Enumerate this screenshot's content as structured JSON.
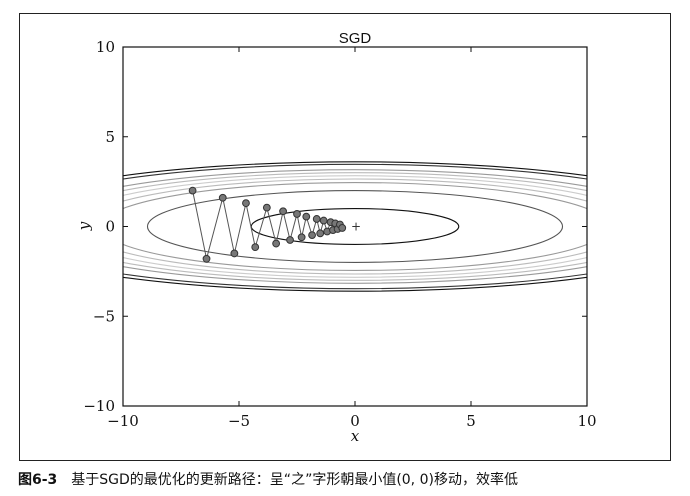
{
  "chart_data": {
    "type": "line",
    "title": "SGD",
    "xlabel": "x",
    "ylabel": "y",
    "xlim": [
      -10,
      10
    ],
    "ylim": [
      -10,
      10
    ],
    "x_ticks": [
      "−10",
      "−5",
      "0",
      "5",
      "10"
    ],
    "y_ticks": [
      "−10",
      "−5",
      "0",
      "5",
      "10"
    ],
    "grid": false,
    "contour_function": "x^2/20 + y^2",
    "contour_levels": [
      1,
      4,
      6,
      7,
      8,
      9,
      10,
      12,
      13
    ],
    "minimum_marker": {
      "x": 0,
      "y": 0,
      "symbol": "+"
    },
    "series": [
      {
        "points": [
          {
            "x": -7.0,
            "y": 2.0
          },
          {
            "x": -6.4,
            "y": -1.8
          },
          {
            "x": -5.7,
            "y": 1.6
          },
          {
            "x": -5.2,
            "y": -1.5
          },
          {
            "x": -4.7,
            "y": 1.3
          },
          {
            "x": -4.3,
            "y": -1.15
          },
          {
            "x": -3.8,
            "y": 1.05
          },
          {
            "x": -3.4,
            "y": -0.95
          },
          {
            "x": -3.1,
            "y": 0.85
          },
          {
            "x": -2.8,
            "y": -0.75
          },
          {
            "x": -2.5,
            "y": 0.7
          },
          {
            "x": -2.3,
            "y": -0.6
          },
          {
            "x": -2.1,
            "y": 0.55
          },
          {
            "x": -1.85,
            "y": -0.48
          },
          {
            "x": -1.65,
            "y": 0.42
          },
          {
            "x": -1.5,
            "y": -0.38
          },
          {
            "x": -1.35,
            "y": 0.33
          },
          {
            "x": -1.2,
            "y": -0.28
          },
          {
            "x": -1.05,
            "y": 0.24
          },
          {
            "x": -0.95,
            "y": -0.2
          },
          {
            "x": -0.85,
            "y": 0.17
          },
          {
            "x": -0.75,
            "y": -0.14
          },
          {
            "x": -0.65,
            "y": 0.11
          },
          {
            "x": -0.55,
            "y": -0.08
          }
        ]
      }
    ]
  },
  "caption": {
    "figure_number": "图6-3",
    "text": "基于SGD的最优化的更新路径：呈“之”字形朝最小值(0, 0)移动，效率低"
  }
}
